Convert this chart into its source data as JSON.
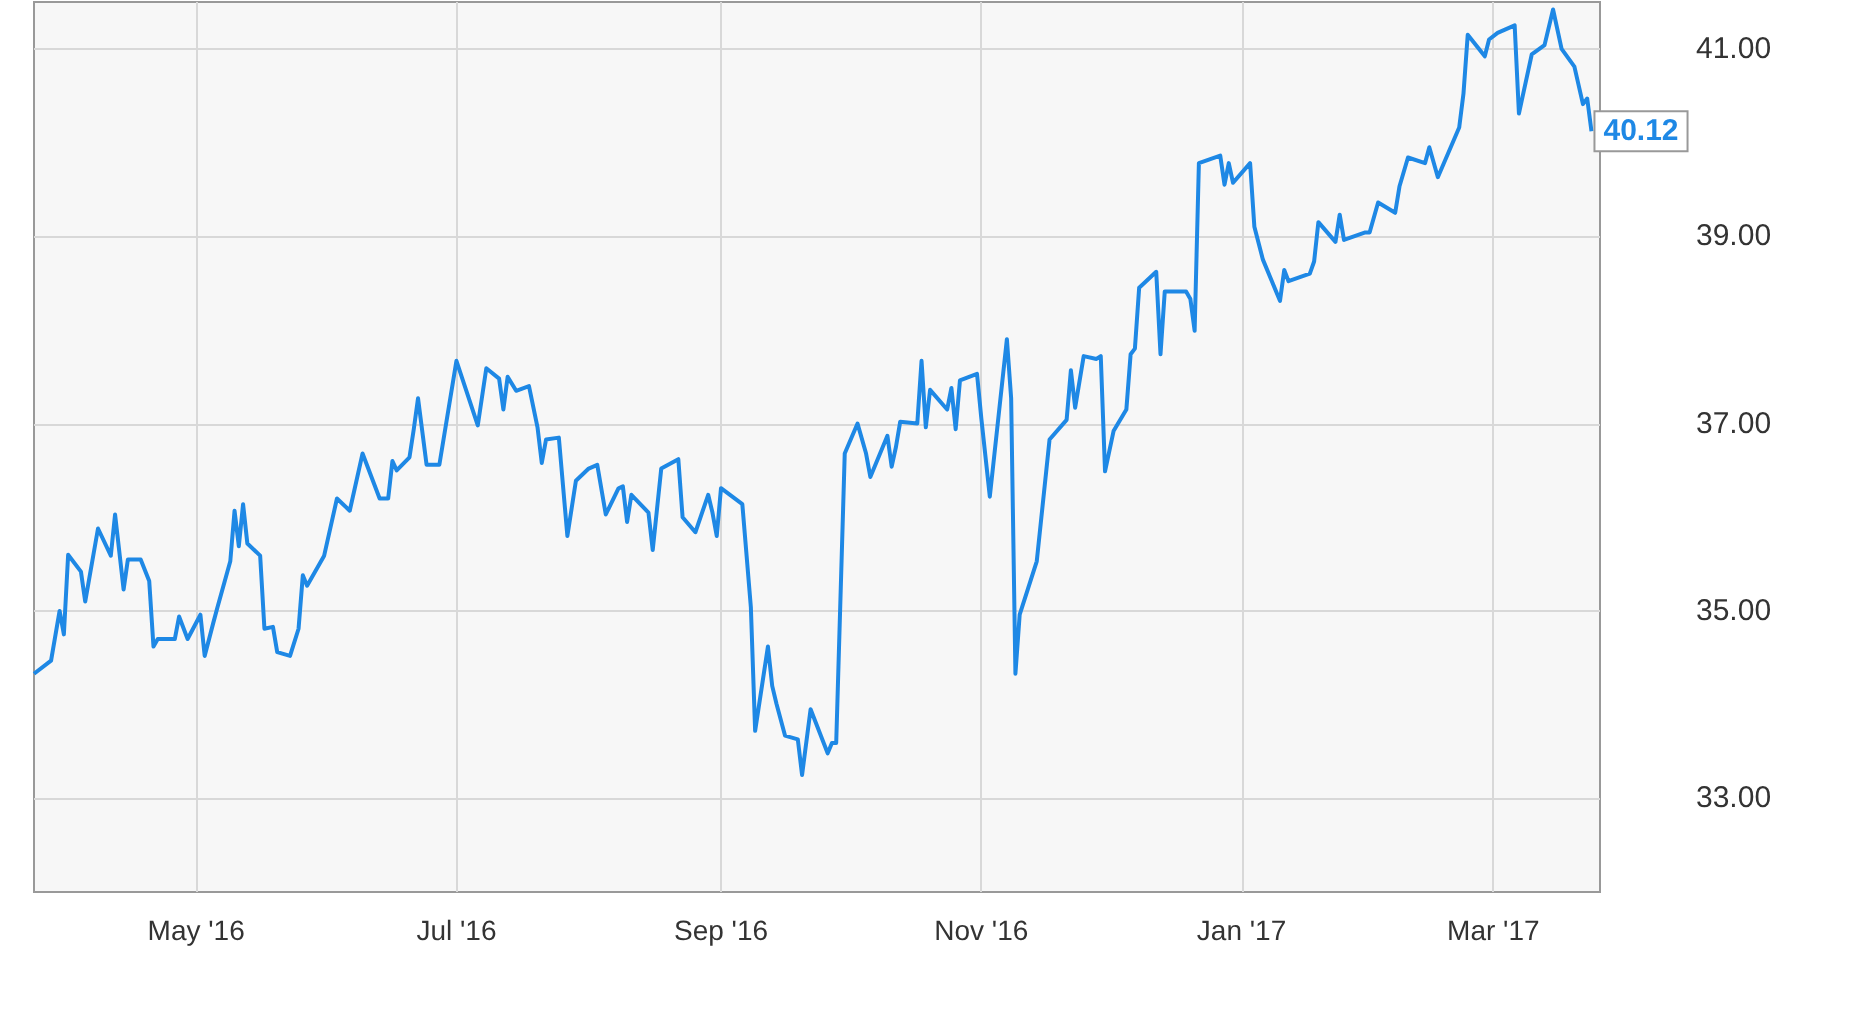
{
  "chart_data": {
    "type": "line",
    "x": [
      "2016-03-24",
      "2016-03-28",
      "2016-03-30",
      "2016-03-31",
      "2016-04-01",
      "2016-04-04",
      "2016-04-05",
      "2016-04-08",
      "2016-04-11",
      "2016-04-12",
      "2016-04-14",
      "2016-04-15",
      "2016-04-18",
      "2016-04-20",
      "2016-04-21",
      "2016-04-22",
      "2016-04-26",
      "2016-04-27",
      "2016-04-29",
      "2016-05-02",
      "2016-05-03",
      "2016-05-05",
      "2016-05-06",
      "2016-05-09",
      "2016-05-10",
      "2016-05-11",
      "2016-05-12",
      "2016-05-13",
      "2016-05-16",
      "2016-05-17",
      "2016-05-19",
      "2016-05-20",
      "2016-05-23",
      "2016-05-25",
      "2016-05-26",
      "2016-05-27",
      "2016-05-31",
      "2016-06-03",
      "2016-06-06",
      "2016-06-09",
      "2016-06-13",
      "2016-06-15",
      "2016-06-16",
      "2016-06-17",
      "2016-06-20",
      "2016-06-21",
      "2016-06-22",
      "2016-06-24",
      "2016-06-27",
      "2016-07-01",
      "2016-07-06",
      "2016-07-08",
      "2016-07-11",
      "2016-07-12",
      "2016-07-13",
      "2016-07-15",
      "2016-07-18",
      "2016-07-20",
      "2016-07-21",
      "2016-07-22",
      "2016-07-25",
      "2016-07-27",
      "2016-07-29",
      "2016-08-01",
      "2016-08-03",
      "2016-08-05",
      "2016-08-08",
      "2016-08-09",
      "2016-08-10",
      "2016-08-11",
      "2016-08-15",
      "2016-08-16",
      "2016-08-18",
      "2016-08-22",
      "2016-08-23",
      "2016-08-26",
      "2016-08-29",
      "2016-08-30",
      "2016-08-31",
      "2016-09-01",
      "2016-09-06",
      "2016-09-08",
      "2016-09-09",
      "2016-09-12",
      "2016-09-13",
      "2016-09-14",
      "2016-09-16",
      "2016-09-19",
      "2016-09-20",
      "2016-09-22",
      "2016-09-26",
      "2016-09-27",
      "2016-09-28",
      "2016-09-30",
      "2016-10-03",
      "2016-10-05",
      "2016-10-06",
      "2016-10-10",
      "2016-10-11",
      "2016-10-12",
      "2016-10-13",
      "2016-10-17",
      "2016-10-18",
      "2016-10-19",
      "2016-10-20",
      "2016-10-24",
      "2016-10-25",
      "2016-10-26",
      "2016-10-27",
      "2016-10-31",
      "2016-11-01",
      "2016-11-03",
      "2016-11-07",
      "2016-11-08",
      "2016-11-09",
      "2016-11-10",
      "2016-11-14",
      "2016-11-17",
      "2016-11-21",
      "2016-11-22",
      "2016-11-23",
      "2016-11-25",
      "2016-11-28",
      "2016-11-29",
      "2016-11-30",
      "2016-12-02",
      "2016-12-05",
      "2016-12-06",
      "2016-12-07",
      "2016-12-08",
      "2016-12-12",
      "2016-12-13",
      "2016-12-14",
      "2016-12-19",
      "2016-12-20",
      "2016-12-21",
      "2016-12-22",
      "2016-12-27",
      "2016-12-28",
      "2016-12-29",
      "2016-12-30",
      "2017-01-03",
      "2017-01-04",
      "2017-01-06",
      "2017-01-10",
      "2017-01-11",
      "2017-01-12",
      "2017-01-17",
      "2017-01-18",
      "2017-01-19",
      "2017-01-23",
      "2017-01-24",
      "2017-01-25",
      "2017-01-30",
      "2017-01-31",
      "2017-02-02",
      "2017-02-06",
      "2017-02-07",
      "2017-02-09",
      "2017-02-13",
      "2017-02-14",
      "2017-02-16",
      "2017-02-21",
      "2017-02-22",
      "2017-02-23",
      "2017-02-27",
      "2017-02-28",
      "2017-03-02",
      "2017-03-06",
      "2017-03-07",
      "2017-03-10",
      "2017-03-13",
      "2017-03-15",
      "2017-03-17",
      "2017-03-20",
      "2017-03-22",
      "2017-03-23",
      "2017-03-24"
    ],
    "series": [
      {
        "color": "#1e88e5",
        "values": [
          34.33,
          34.47,
          35.0,
          34.75,
          35.6,
          35.42,
          35.1,
          35.88,
          35.59,
          36.03,
          35.23,
          35.55,
          35.55,
          35.32,
          34.62,
          34.7,
          34.7,
          34.94,
          34.7,
          34.96,
          34.52,
          34.87,
          35.04,
          35.53,
          36.07,
          35.69,
          36.14,
          35.72,
          35.59,
          34.81,
          34.83,
          34.56,
          34.52,
          34.81,
          35.38,
          35.27,
          35.59,
          36.2,
          36.07,
          36.68,
          36.2,
          36.2,
          36.6,
          36.5,
          36.64,
          36.94,
          37.27,
          36.56,
          36.56,
          37.67,
          36.98,
          37.59,
          37.48,
          37.15,
          37.5,
          37.35,
          37.4,
          36.96,
          36.58,
          36.83,
          36.85,
          35.8,
          36.39,
          36.52,
          36.56,
          36.03,
          36.31,
          36.33,
          35.95,
          36.24,
          36.05,
          35.65,
          36.52,
          36.62,
          36.0,
          35.84,
          36.24,
          36.05,
          35.8,
          36.31,
          36.14,
          35.04,
          33.72,
          34.62,
          34.2,
          34.01,
          33.67,
          33.63,
          33.25,
          33.95,
          33.48,
          33.59,
          33.59,
          36.68,
          37.0,
          36.68,
          36.43,
          36.87,
          36.54,
          36.75,
          37.02,
          37.0,
          37.67,
          36.96,
          37.36,
          37.15,
          37.38,
          36.94,
          37.46,
          37.53,
          37.06,
          36.22,
          37.9,
          37.27,
          34.33,
          34.96,
          35.53,
          36.83,
          37.04,
          37.57,
          37.17,
          37.72,
          37.69,
          37.72,
          36.49,
          36.92,
          37.15,
          37.74,
          37.8,
          38.45,
          38.62,
          37.74,
          38.41,
          38.41,
          38.33,
          37.99,
          39.78,
          39.86,
          39.55,
          39.78,
          39.57,
          39.78,
          39.1,
          38.75,
          38.31,
          38.64,
          38.52,
          38.6,
          38.73,
          39.15,
          38.94,
          39.23,
          38.96,
          39.04,
          39.04,
          39.36,
          39.25,
          39.53,
          39.84,
          39.78,
          39.95,
          39.63,
          40.16,
          40.52,
          41.15,
          40.92,
          41.1,
          41.17,
          41.25,
          40.31,
          40.94,
          41.04,
          41.42,
          41.0,
          40.81,
          40.41,
          40.47,
          40.12
        ]
      }
    ],
    "xlim": [
      "2016-03-24",
      "2017-03-26"
    ],
    "xticks": [
      {
        "value": "2016-05-01",
        "label": "May '16"
      },
      {
        "value": "2016-07-01",
        "label": "Jul '16"
      },
      {
        "value": "2016-09-01",
        "label": "Sep '16"
      },
      {
        "value": "2016-11-01",
        "label": "Nov '16"
      },
      {
        "value": "2017-01-01",
        "label": "Jan '17"
      },
      {
        "value": "2017-03-01",
        "label": "Mar '17"
      }
    ],
    "ylim": [
      32,
      41.5
    ],
    "yticks": [
      {
        "value": 33,
        "label": "33.00"
      },
      {
        "value": 35,
        "label": "35.00"
      },
      {
        "value": 37,
        "label": "37.00"
      },
      {
        "value": 39,
        "label": "39.00"
      },
      {
        "value": 41,
        "label": "41.00"
      }
    ],
    "annotations": [
      {
        "text": "40.12",
        "x": "2017-03-24",
        "y": 40.12
      }
    ],
    "grid": true,
    "marker": "none",
    "line_style": "solid"
  }
}
